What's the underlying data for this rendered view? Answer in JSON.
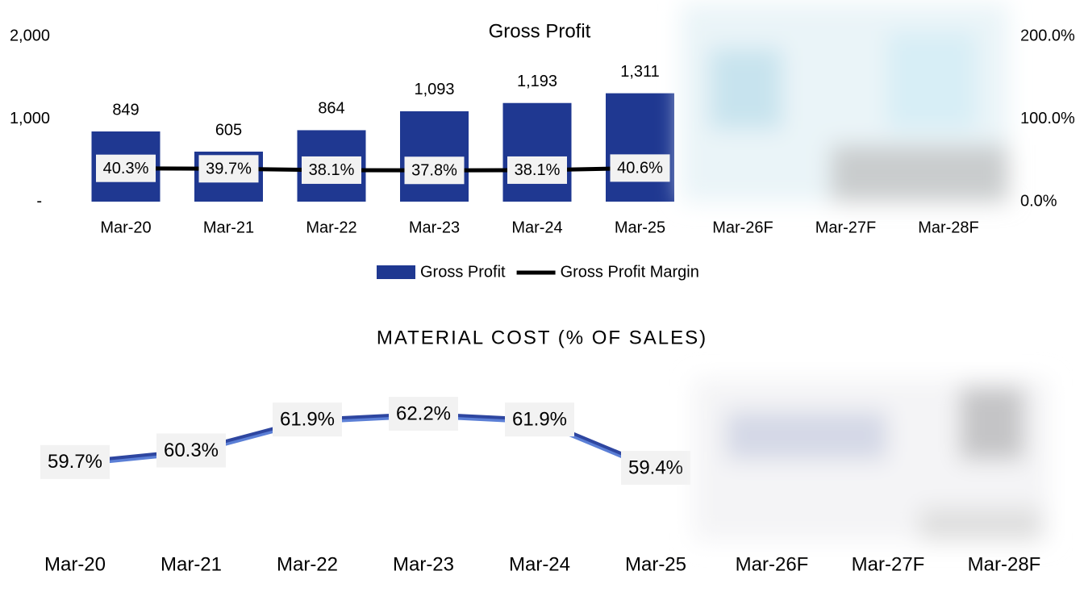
{
  "chart_data": [
    {
      "type": "bar-line",
      "title": "Gross Profit",
      "categories": [
        "Mar-20",
        "Mar-21",
        "Mar-22",
        "Mar-23",
        "Mar-24",
        "Mar-25",
        "Mar-26F",
        "Mar-27F",
        "Mar-28F"
      ],
      "series": [
        {
          "name": "Gross Profit",
          "type": "bar",
          "color": "#1f3891",
          "values": [
            849,
            605,
            864,
            1093,
            1193,
            1311,
            null,
            null,
            null
          ],
          "value_labels": [
            "849",
            "605",
            "864",
            "1,093",
            "1,193",
            "1,311",
            null,
            null,
            null
          ]
        },
        {
          "name": "Gross Profit Margin",
          "type": "line",
          "axis": "y2",
          "color": "#000000",
          "values": [
            40.3,
            39.7,
            38.1,
            37.8,
            38.1,
            40.6,
            null,
            null,
            null
          ],
          "value_labels": [
            "40.3%",
            "39.7%",
            "38.1%",
            "37.8%",
            "38.1%",
            "40.6%",
            null,
            null,
            null
          ]
        }
      ],
      "ylim": [
        0,
        2000
      ],
      "yticks": [
        {
          "value": 0,
          "label": "-"
        },
        {
          "value": 1000,
          "label": "1,000"
        },
        {
          "value": 2000,
          "label": "2,000"
        }
      ],
      "y2lim": [
        0,
        200
      ],
      "y2ticks": [
        {
          "value": 0,
          "label": "0.0%"
        },
        {
          "value": 100,
          "label": "100.0%"
        },
        {
          "value": 200,
          "label": "200.0%"
        }
      ],
      "legend": "bottom"
    },
    {
      "type": "line",
      "title": "MATERIAL COST (% OF SALES)",
      "categories": [
        "Mar-20",
        "Mar-21",
        "Mar-22",
        "Mar-23",
        "Mar-24",
        "Mar-25",
        "Mar-26F",
        "Mar-27F",
        "Mar-28F"
      ],
      "color": "#2e46a0",
      "values": [
        59.7,
        60.3,
        61.9,
        62.2,
        61.9,
        59.4,
        null,
        null,
        null
      ],
      "value_labels": [
        "59.7%",
        "60.3%",
        "61.9%",
        "62.2%",
        "61.9%",
        "59.4%",
        null,
        null,
        null
      ]
    }
  ]
}
